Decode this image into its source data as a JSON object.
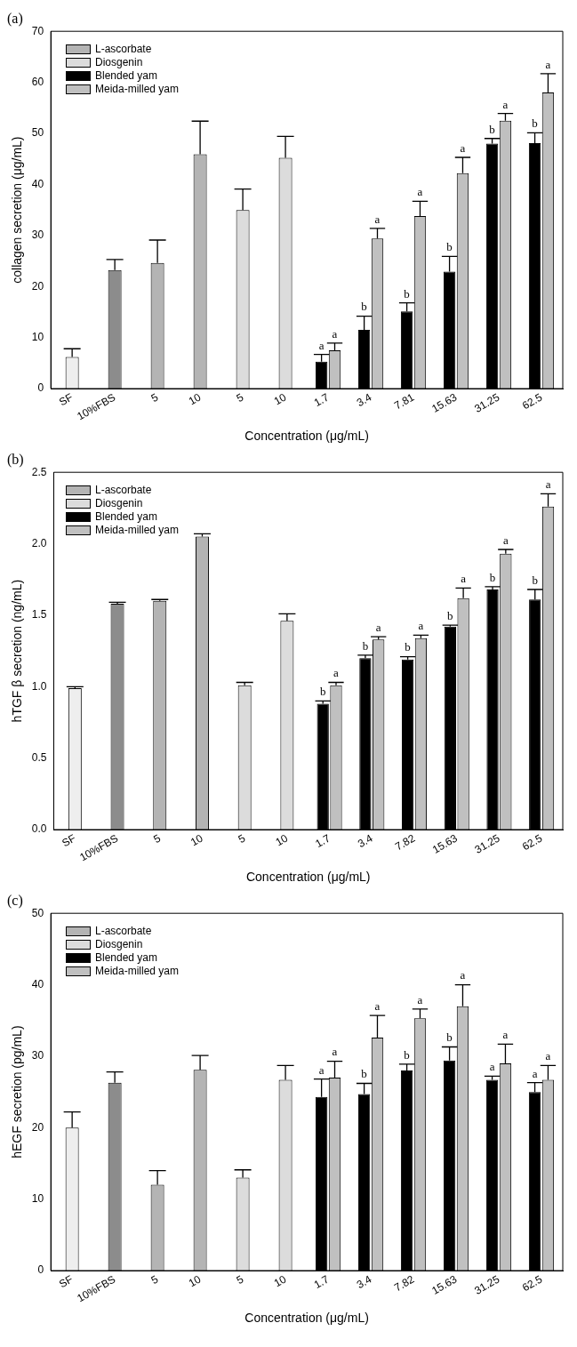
{
  "chart_data": [
    {
      "type": "bar",
      "title": "(a)",
      "xlabel": "Concentration (μg/mL)",
      "ylabel": "collagen secretion (μg/mL)",
      "categories": [
        "SF",
        "10%FBS",
        "5",
        "10",
        "5",
        "10",
        "1.7",
        "3.4",
        "7.81",
        "15.63",
        "31.25",
        "62.5"
      ],
      "series": [
        {
          "color": "#eeeeee",
          "values": [
            6.2,
            null,
            null,
            null,
            null,
            null,
            null,
            null,
            null,
            null,
            null,
            null
          ],
          "errors": [
            [
              6.2,
              7.8
            ],
            null,
            null,
            null,
            null,
            null,
            null,
            null,
            null,
            null,
            null,
            null
          ]
        },
        {
          "color": "#8c8c8c",
          "values": [
            null,
            23.2,
            null,
            null,
            null,
            null,
            null,
            null,
            null,
            null,
            null,
            null
          ],
          "errors": [
            null,
            [
              23.2,
              25.3
            ],
            null,
            null,
            null,
            null,
            null,
            null,
            null,
            null,
            null,
            null
          ]
        },
        {
          "name": "L-ascorbate",
          "color": "#b4b4b4",
          "values": [
            null,
            null,
            24.6,
            45.9,
            null,
            null,
            null,
            null,
            null,
            null,
            null,
            null
          ],
          "errors": [
            null,
            null,
            [
              24.6,
              29.1
            ],
            [
              45.9,
              52.4
            ],
            null,
            null,
            null,
            null,
            null,
            null,
            null,
            null
          ]
        },
        {
          "name": "Diosgenin",
          "color": "#dcdcdc",
          "values": [
            null,
            null,
            null,
            null,
            35.0,
            45.2,
            null,
            null,
            null,
            null,
            null,
            null
          ],
          "errors": [
            null,
            null,
            null,
            null,
            [
              35.0,
              39.1
            ],
            [
              45.2,
              49.4
            ],
            null,
            null,
            null,
            null,
            null,
            null
          ]
        },
        {
          "name": "Blended yam",
          "color": "#000000",
          "values": [
            null,
            null,
            null,
            null,
            null,
            null,
            5.3,
            11.5,
            15.1,
            22.9,
            48.0,
            48.1
          ],
          "errors": [
            null,
            null,
            null,
            null,
            null,
            null,
            [
              5.3,
              6.7
            ],
            [
              11.5,
              14.2
            ],
            [
              15.1,
              16.8
            ],
            [
              22.9,
              25.9
            ],
            [
              48.0,
              49.0
            ],
            [
              48.1,
              50.1
            ]
          ],
          "value_labels": [
            null,
            null,
            null,
            null,
            null,
            null,
            "a",
            "b",
            "b",
            "b",
            "b",
            "b"
          ]
        },
        {
          "name": "Meida-milled yam",
          "color": "#c0c0c0",
          "values": [
            null,
            null,
            null,
            null,
            null,
            null,
            7.5,
            29.4,
            33.8,
            42.2,
            52.5,
            58.0
          ],
          "errors": [
            null,
            null,
            null,
            null,
            null,
            null,
            [
              7.5,
              8.9
            ],
            [
              29.4,
              31.4
            ],
            [
              33.8,
              36.7
            ],
            [
              42.2,
              45.3
            ],
            [
              52.5,
              53.9
            ],
            [
              58.0,
              61.7
            ]
          ],
          "value_labels": [
            null,
            null,
            null,
            null,
            null,
            null,
            "a",
            "a",
            "a",
            "a",
            "a",
            "a"
          ]
        }
      ],
      "ylim": [
        0,
        70
      ],
      "yticks": [
        0,
        10,
        20,
        30,
        40,
        50,
        60,
        70
      ],
      "legend": "top left",
      "grid": false
    },
    {
      "type": "bar",
      "title": "(b)",
      "xlabel": "Concentration (μg/mL)",
      "ylabel": "hTGF β secretion (ng/mL)",
      "categories": [
        "SF",
        "10%FBS",
        "5",
        "10",
        "5",
        "10",
        "1.7",
        "3.4",
        "7.82",
        "15.63",
        "31.25",
        "62.5"
      ],
      "series": [
        {
          "color": "#eeeeee",
          "values": [
            0.99,
            null,
            null,
            null,
            null,
            null,
            null,
            null,
            null,
            null,
            null,
            null
          ],
          "errors": [
            [
              0.99,
              1.0
            ],
            null,
            null,
            null,
            null,
            null,
            null,
            null,
            null,
            null,
            null,
            null
          ]
        },
        {
          "color": "#8c8c8c",
          "values": [
            null,
            1.58,
            null,
            null,
            null,
            null,
            null,
            null,
            null,
            null,
            null,
            null
          ],
          "errors": [
            null,
            [
              1.58,
              1.59
            ],
            null,
            null,
            null,
            null,
            null,
            null,
            null,
            null,
            null,
            null
          ]
        },
        {
          "name": "L-ascorbate",
          "color": "#b4b4b4",
          "values": [
            null,
            null,
            1.6,
            2.05,
            null,
            null,
            null,
            null,
            null,
            null,
            null,
            null
          ],
          "errors": [
            null,
            null,
            [
              1.6,
              1.61
            ],
            [
              2.05,
              2.07
            ],
            null,
            null,
            null,
            null,
            null,
            null,
            null,
            null
          ]
        },
        {
          "name": "Diosgenin",
          "color": "#dcdcdc",
          "values": [
            null,
            null,
            null,
            null,
            1.01,
            1.46,
            null,
            null,
            null,
            null,
            null,
            null
          ],
          "errors": [
            null,
            null,
            null,
            null,
            [
              1.01,
              1.03
            ],
            [
              1.46,
              1.51
            ],
            null,
            null,
            null,
            null,
            null,
            null
          ]
        },
        {
          "name": "Blended yam",
          "color": "#000000",
          "values": [
            null,
            null,
            null,
            null,
            null,
            null,
            0.88,
            1.2,
            1.19,
            1.42,
            1.68,
            1.61
          ],
          "errors": [
            null,
            null,
            null,
            null,
            null,
            null,
            [
              0.88,
              0.9
            ],
            [
              1.2,
              1.22
            ],
            [
              1.19,
              1.21
            ],
            [
              1.42,
              1.43
            ],
            [
              1.68,
              1.7
            ],
            [
              1.61,
              1.68
            ]
          ],
          "value_labels": [
            null,
            null,
            null,
            null,
            null,
            null,
            "b",
            "b",
            "b",
            "b",
            "b",
            "b"
          ]
        },
        {
          "name": "Meida-milled yam",
          "color": "#c0c0c0",
          "values": [
            null,
            null,
            null,
            null,
            null,
            null,
            1.01,
            1.33,
            1.34,
            1.62,
            1.93,
            2.26
          ],
          "errors": [
            null,
            null,
            null,
            null,
            null,
            null,
            [
              1.01,
              1.03
            ],
            [
              1.33,
              1.35
            ],
            [
              1.34,
              1.36
            ],
            [
              1.62,
              1.69
            ],
            [
              1.93,
              1.96
            ],
            [
              2.26,
              2.35
            ]
          ],
          "value_labels": [
            null,
            null,
            null,
            null,
            null,
            null,
            "a",
            "a",
            "a",
            "a",
            "a",
            "a"
          ]
        }
      ],
      "ylim": [
        0,
        2.5
      ],
      "yticks": [
        {
          "value": 0,
          "label": "0.0"
        },
        {
          "value": 0.5,
          "label": "0.5"
        },
        {
          "value": 1,
          "label": "1.0"
        },
        {
          "value": 1.5,
          "label": "1.5"
        },
        {
          "value": 2,
          "label": "2.0"
        },
        {
          "value": 2.5,
          "label": "2.5"
        }
      ],
      "legend": "top left",
      "grid": false
    },
    {
      "type": "bar",
      "title": "(c)",
      "xlabel": "Concentration (μg/mL)",
      "ylabel": "hEGF secretion (pg/mL)",
      "categories": [
        "SF",
        "10%FBS",
        "5",
        "10",
        "5",
        "10",
        "1.7",
        "3.4",
        "7.82",
        "15.63",
        "31.25",
        "62.5"
      ],
      "series": [
        {
          "color": "#eeeeee",
          "values": [
            20.0,
            null,
            null,
            null,
            null,
            null,
            null,
            null,
            null,
            null,
            null,
            null
          ],
          "errors": [
            [
              20.0,
              22.2
            ],
            null,
            null,
            null,
            null,
            null,
            null,
            null,
            null,
            null,
            null,
            null
          ]
        },
        {
          "color": "#8c8c8c",
          "values": [
            null,
            26.3,
            null,
            null,
            null,
            null,
            null,
            null,
            null,
            null,
            null,
            null
          ],
          "errors": [
            null,
            [
              26.3,
              27.8
            ],
            null,
            null,
            null,
            null,
            null,
            null,
            null,
            null,
            null,
            null
          ]
        },
        {
          "name": "L-ascorbate",
          "color": "#b4b4b4",
          "values": [
            null,
            null,
            12.0,
            28.1,
            null,
            null,
            null,
            null,
            null,
            null,
            null,
            null
          ],
          "errors": [
            null,
            null,
            [
              12.0,
              14.0
            ],
            [
              28.1,
              30.1
            ],
            null,
            null,
            null,
            null,
            null,
            null,
            null,
            null
          ]
        },
        {
          "name": "Diosgenin",
          "color": "#dcdcdc",
          "values": [
            null,
            null,
            null,
            null,
            13.0,
            26.7,
            null,
            null,
            null,
            null,
            null,
            null
          ],
          "errors": [
            null,
            null,
            null,
            null,
            [
              13.0,
              14.1
            ],
            [
              26.7,
              28.7
            ],
            null,
            null,
            null,
            null,
            null,
            null
          ]
        },
        {
          "name": "Blended yam",
          "color": "#000000",
          "values": [
            null,
            null,
            null,
            null,
            null,
            null,
            24.3,
            24.7,
            28.0,
            29.4,
            26.7,
            25.0
          ],
          "errors": [
            null,
            null,
            null,
            null,
            null,
            null,
            [
              24.3,
              26.8
            ],
            [
              24.7,
              26.2
            ],
            [
              28.0,
              28.9
            ],
            [
              29.4,
              31.3
            ],
            [
              26.7,
              27.2
            ],
            [
              25.0,
              26.3
            ]
          ],
          "value_labels": [
            null,
            null,
            null,
            null,
            null,
            null,
            "a",
            "b",
            "b",
            "b",
            "a",
            "a"
          ]
        },
        {
          "name": "Meida-milled yam",
          "color": "#c0c0c0",
          "values": [
            null,
            null,
            null,
            null,
            null,
            null,
            27.0,
            32.6,
            35.3,
            37.0,
            29.0,
            26.7
          ],
          "errors": [
            null,
            null,
            null,
            null,
            null,
            null,
            [
              27.0,
              29.3
            ],
            [
              32.6,
              35.7
            ],
            [
              35.3,
              36.6
            ],
            [
              37.0,
              40.0
            ],
            [
              29.0,
              31.7
            ],
            [
              26.7,
              28.7
            ]
          ],
          "value_labels": [
            null,
            null,
            null,
            null,
            null,
            null,
            "a",
            "a",
            "a",
            "a",
            "a",
            "a"
          ]
        }
      ],
      "ylim": [
        0,
        50
      ],
      "yticks": [
        0,
        10,
        20,
        30,
        40,
        50
      ],
      "legend": "top left",
      "grid": false
    }
  ]
}
